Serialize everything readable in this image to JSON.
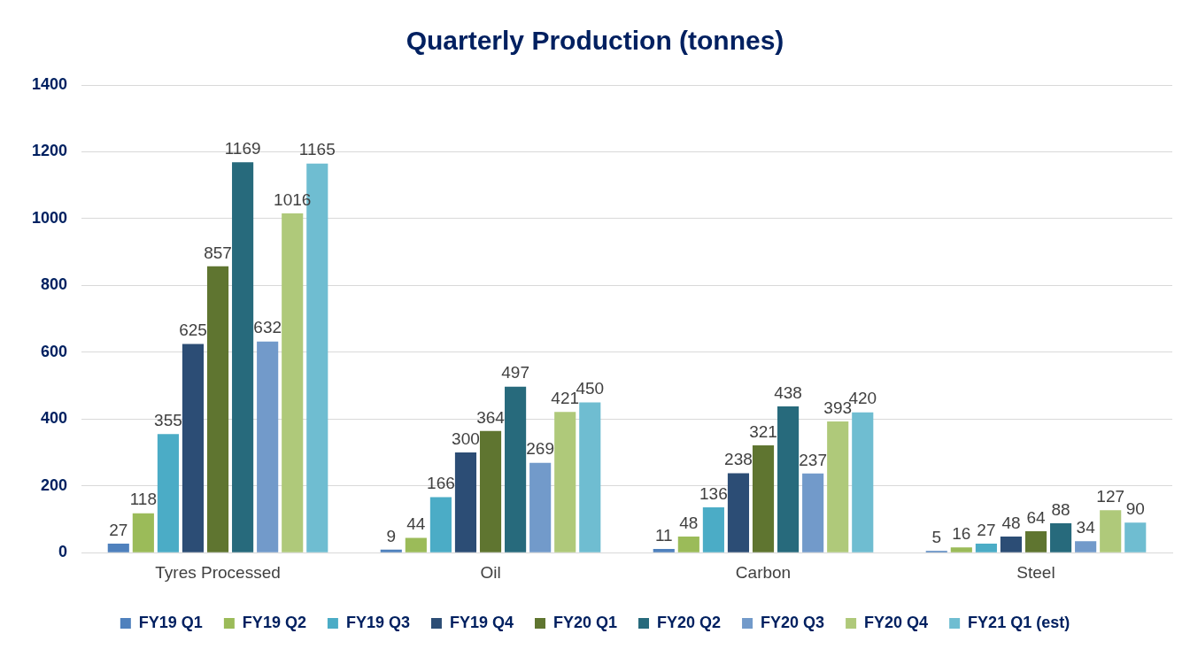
{
  "chart_data": {
    "type": "bar",
    "title": "Quarterly Production (tonnes)",
    "categories": [
      "Tyres Processed",
      "Oil",
      "Carbon",
      "Steel"
    ],
    "series": [
      {
        "name": "FY19 Q1",
        "color": "#4f81bd",
        "values": [
          27,
          9,
          11,
          5
        ]
      },
      {
        "name": "FY19 Q2",
        "color": "#9bbb59",
        "values": [
          118,
          44,
          48,
          16
        ]
      },
      {
        "name": "FY19 Q3",
        "color": "#4bacc6",
        "values": [
          355,
          166,
          136,
          27
        ]
      },
      {
        "name": "FY19 Q4",
        "color": "#2c4d75",
        "values": [
          625,
          300,
          238,
          48
        ]
      },
      {
        "name": "FY20 Q1",
        "color": "#5f7530",
        "values": [
          857,
          364,
          321,
          64
        ]
      },
      {
        "name": "FY20 Q2",
        "color": "#276a7c",
        "values": [
          1169,
          497,
          438,
          88
        ]
      },
      {
        "name": "FY20 Q3",
        "color": "#729aca",
        "values": [
          632,
          269,
          237,
          34
        ]
      },
      {
        "name": "FY20 Q4",
        "color": "#afc97a",
        "values": [
          1016,
          421,
          393,
          127
        ]
      },
      {
        "name": "FY21 Q1 (est)",
        "color": "#6fbdd1",
        "values": [
          1165,
          450,
          420,
          90
        ]
      }
    ],
    "ylim": [
      0,
      1400
    ],
    "yticks": [
      0,
      200,
      400,
      600,
      800,
      1000,
      1200,
      1400
    ],
    "grid": "y",
    "legend": "bottom",
    "data_labels": true
  }
}
